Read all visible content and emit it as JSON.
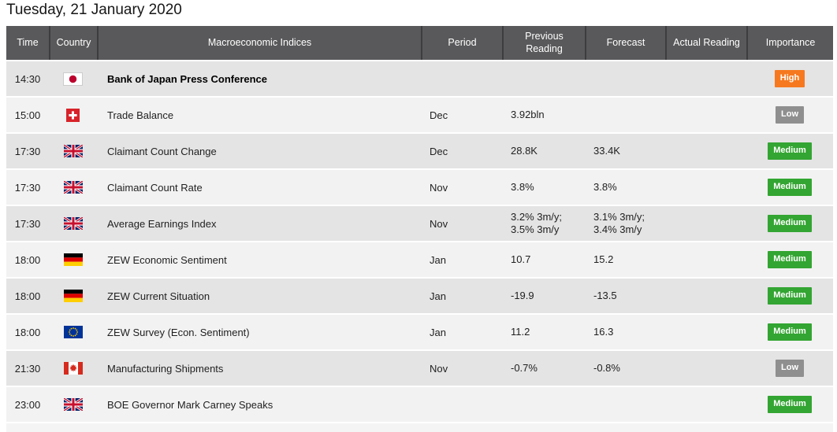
{
  "page": {
    "title": "Tuesday, 21 January 2020"
  },
  "table": {
    "columns": [
      {
        "label": "Time"
      },
      {
        "label": "Country"
      },
      {
        "label": "Macroeconomic Indices"
      },
      {
        "label": "Period"
      },
      {
        "label": "Previous Reading"
      },
      {
        "label": "Forecast"
      },
      {
        "label": "Actual Reading"
      },
      {
        "label": "Importance"
      }
    ],
    "importance_colors": {
      "High": "#f6791f",
      "Medium": "#33a532",
      "Low": "#8f8f8f"
    },
    "header_bg": "#59595b",
    "rows": [
      {
        "time": "14:30",
        "country": "japan",
        "event": "Bank of Japan Press Conference",
        "bold": true,
        "period": "",
        "previous": "",
        "forecast": "",
        "actual": "",
        "importance": "High"
      },
      {
        "time": "15:00",
        "country": "switzerland",
        "event": "Trade Balance",
        "bold": false,
        "period": "Dec",
        "previous": "3.92bln",
        "forecast": "",
        "actual": "",
        "importance": "Low"
      },
      {
        "time": "17:30",
        "country": "united-kingdom",
        "event": "Claimant Count Change",
        "bold": false,
        "period": "Dec",
        "previous": "28.8K",
        "forecast": "33.4K",
        "actual": "",
        "importance": "Medium"
      },
      {
        "time": "17:30",
        "country": "united-kingdom",
        "event": "Claimant Count Rate",
        "bold": false,
        "period": "Nov",
        "previous": "3.8%",
        "forecast": "3.8%",
        "actual": "",
        "importance": "Medium"
      },
      {
        "time": "17:30",
        "country": "united-kingdom",
        "event": "Average Earnings Index",
        "bold": false,
        "period": "Nov",
        "previous": "3.2% 3m/y;\n3.5% 3m/y",
        "forecast": "3.1% 3m/y;\n3.4% 3m/y",
        "actual": "",
        "importance": "Medium"
      },
      {
        "time": "18:00",
        "country": "germany",
        "event": "ZEW Economic Sentiment",
        "bold": false,
        "period": "Jan",
        "previous": "10.7",
        "forecast": "15.2",
        "actual": "",
        "importance": "Medium"
      },
      {
        "time": "18:00",
        "country": "germany",
        "event": "ZEW Current Situation",
        "bold": false,
        "period": "Jan",
        "previous": "-19.9",
        "forecast": "-13.5",
        "actual": "",
        "importance": "Medium"
      },
      {
        "time": "18:00",
        "country": "european-union",
        "event": "ZEW Survey (Econ. Sentiment)",
        "bold": false,
        "period": "Jan",
        "previous": "11.2",
        "forecast": "16.3",
        "actual": "",
        "importance": "Medium"
      },
      {
        "time": "21:30",
        "country": "canada",
        "event": "Manufacturing Shipments",
        "bold": false,
        "period": "Nov",
        "previous": "-0.7%",
        "forecast": "-0.8%",
        "actual": "",
        "importance": "Low"
      },
      {
        "time": "23:00",
        "country": "united-kingdom",
        "event": "BOE Governor Mark Carney Speaks",
        "bold": false,
        "period": "",
        "previous": "",
        "forecast": "",
        "actual": "",
        "importance": "Medium"
      }
    ]
  }
}
